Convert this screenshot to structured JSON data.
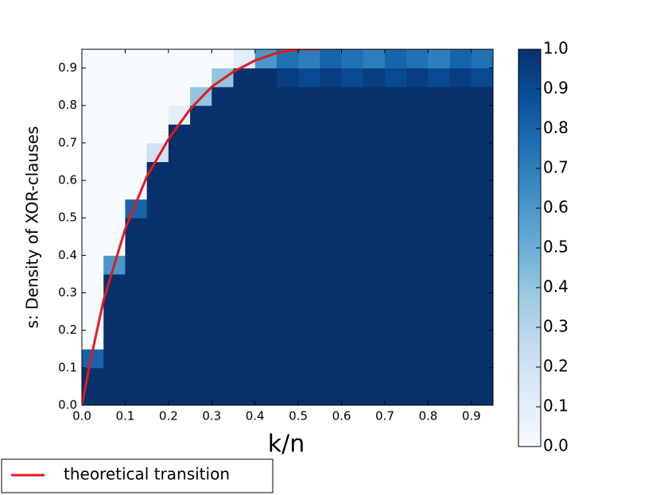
{
  "chart_data": {
    "type": "heatmap",
    "xlabel": "k/n",
    "ylabel": "s: Density of XOR-clauses",
    "xlim": [
      0,
      0.95
    ],
    "ylim": [
      0,
      0.95
    ],
    "xticks": [
      {
        "value": 0,
        "label": "0.0"
      },
      {
        "value": 0.1,
        "label": "0.1"
      },
      {
        "value": 0.2,
        "label": "0.2"
      },
      {
        "value": 0.3,
        "label": "0.3"
      },
      {
        "value": 0.4,
        "label": "0.4"
      },
      {
        "value": 0.5,
        "label": "0.5"
      },
      {
        "value": 0.6,
        "label": "0.6"
      },
      {
        "value": 0.7,
        "label": "0.7"
      },
      {
        "value": 0.8,
        "label": "0.8"
      },
      {
        "value": 0.9,
        "label": "0.9"
      }
    ],
    "yticks": [
      {
        "value": 0,
        "label": "0.0"
      },
      {
        "value": 0.1,
        "label": "0.1"
      },
      {
        "value": 0.2,
        "label": "0.2"
      },
      {
        "value": 0.3,
        "label": "0.3"
      },
      {
        "value": 0.4,
        "label": "0.4"
      },
      {
        "value": 0.5,
        "label": "0.5"
      },
      {
        "value": 0.6,
        "label": "0.6"
      },
      {
        "value": 0.7,
        "label": "0.7"
      },
      {
        "value": 0.8,
        "label": "0.8"
      },
      {
        "value": 0.9,
        "label": "0.9"
      }
    ],
    "colorbar_lim": [
      0,
      1
    ],
    "colorbar_ticks": [
      {
        "value": 0,
        "label": "0.0"
      },
      {
        "value": 0.1,
        "label": "0.1"
      },
      {
        "value": 0.2,
        "label": "0.2"
      },
      {
        "value": 0.3,
        "label": "0.3"
      },
      {
        "value": 0.4,
        "label": "0.4"
      },
      {
        "value": 0.5,
        "label": "0.5"
      },
      {
        "value": 0.6,
        "label": "0.6"
      },
      {
        "value": 0.7,
        "label": "0.7"
      },
      {
        "value": 0.8,
        "label": "0.8"
      },
      {
        "value": 0.9,
        "label": "0.9"
      },
      {
        "value": 1,
        "label": "1.0"
      }
    ],
    "colorscale": [
      "#f7fbff",
      "#deebf7",
      "#c6dbef",
      "#9ecae1",
      "#6baed6",
      "#4292c6",
      "#2171b5",
      "#08519c",
      "#08306b"
    ],
    "z": [
      [
        1,
        1,
        1,
        1,
        1,
        1,
        1,
        1,
        1,
        1,
        1,
        1,
        1,
        1,
        1,
        1,
        1,
        1,
        1
      ],
      [
        1,
        1,
        1,
        1,
        1,
        1,
        1,
        1,
        1,
        1,
        1,
        1,
        1,
        1,
        1,
        1,
        1,
        1,
        1
      ],
      [
        0.8,
        1,
        1,
        1,
        1,
        1,
        1,
        1,
        1,
        1,
        1,
        1,
        1,
        1,
        1,
        1,
        1,
        1,
        1
      ],
      [
        0,
        1,
        1,
        1,
        1,
        1,
        1,
        1,
        1,
        1,
        1,
        1,
        1,
        1,
        1,
        1,
        1,
        1,
        1
      ],
      [
        0,
        1,
        1,
        1,
        1,
        1,
        1,
        1,
        1,
        1,
        1,
        1,
        1,
        1,
        1,
        1,
        1,
        1,
        1
      ],
      [
        0,
        1,
        1,
        1,
        1,
        1,
        1,
        1,
        1,
        1,
        1,
        1,
        1,
        1,
        1,
        1,
        1,
        1,
        1
      ],
      [
        0,
        1,
        1,
        1,
        1,
        1,
        1,
        1,
        1,
        1,
        1,
        1,
        1,
        1,
        1,
        1,
        1,
        1,
        1
      ],
      [
        0,
        0.6,
        1,
        1,
        1,
        1,
        1,
        1,
        1,
        1,
        1,
        1,
        1,
        1,
        1,
        1,
        1,
        1,
        1
      ],
      [
        0,
        0,
        1,
        1,
        1,
        1,
        1,
        1,
        1,
        1,
        1,
        1,
        1,
        1,
        1,
        1,
        1,
        1,
        1
      ],
      [
        0,
        0,
        1,
        1,
        1,
        1,
        1,
        1,
        1,
        1,
        1,
        1,
        1,
        1,
        1,
        1,
        1,
        1,
        1
      ],
      [
        0,
        0,
        0.8,
        1,
        1,
        1,
        1,
        1,
        1,
        1,
        1,
        1,
        1,
        1,
        1,
        1,
        1,
        1,
        1
      ],
      [
        0,
        0,
        0,
        1,
        1,
        1,
        1,
        1,
        1,
        1,
        1,
        1,
        1,
        1,
        1,
        1,
        1,
        1,
        1
      ],
      [
        0,
        0,
        0,
        1,
        1,
        1,
        1,
        1,
        1,
        1,
        1,
        1,
        1,
        1,
        1,
        1,
        1,
        1,
        1
      ],
      [
        0,
        0,
        0,
        0.2,
        1,
        1,
        1,
        1,
        1,
        1,
        1,
        1,
        1,
        1,
        1,
        1,
        1,
        1,
        1
      ],
      [
        0,
        0,
        0,
        0,
        1,
        1,
        1,
        1,
        1,
        1,
        1,
        1,
        1,
        1,
        1,
        1,
        1,
        1,
        1
      ],
      [
        0,
        0,
        0,
        0,
        0.1,
        1,
        1,
        1,
        1,
        1,
        1,
        1,
        1,
        1,
        1,
        1,
        1,
        1,
        1
      ],
      [
        0,
        0,
        0,
        0,
        0,
        0.4,
        1,
        1,
        1,
        1,
        1,
        1,
        1,
        1,
        1,
        1,
        1,
        1,
        1
      ],
      [
        0,
        0,
        0,
        0,
        0,
        0,
        0.4,
        1,
        1,
        0.95,
        0.9,
        0.95,
        0.9,
        0.95,
        0.9,
        0.95,
        0.9,
        0.95,
        0.9
      ],
      [
        0,
        0,
        0,
        0,
        0,
        0,
        0,
        0.1,
        0.6,
        0.75,
        0.7,
        0.8,
        0.75,
        0.7,
        0.8,
        0.75,
        0.7,
        0.8,
        0.75
      ]
    ],
    "series": [
      {
        "name": "theoretical transition",
        "color": "#e31a1c",
        "x": [
          0,
          0.02,
          0.05,
          0.1,
          0.15,
          0.2,
          0.25,
          0.3,
          0.35,
          0.4,
          0.45,
          0.5,
          0.55
        ],
        "values": [
          0,
          0.12,
          0.28,
          0.47,
          0.61,
          0.71,
          0.79,
          0.85,
          0.89,
          0.92,
          0.94,
          0.95,
          0.95
        ]
      }
    ],
    "legend": "below-left"
  }
}
